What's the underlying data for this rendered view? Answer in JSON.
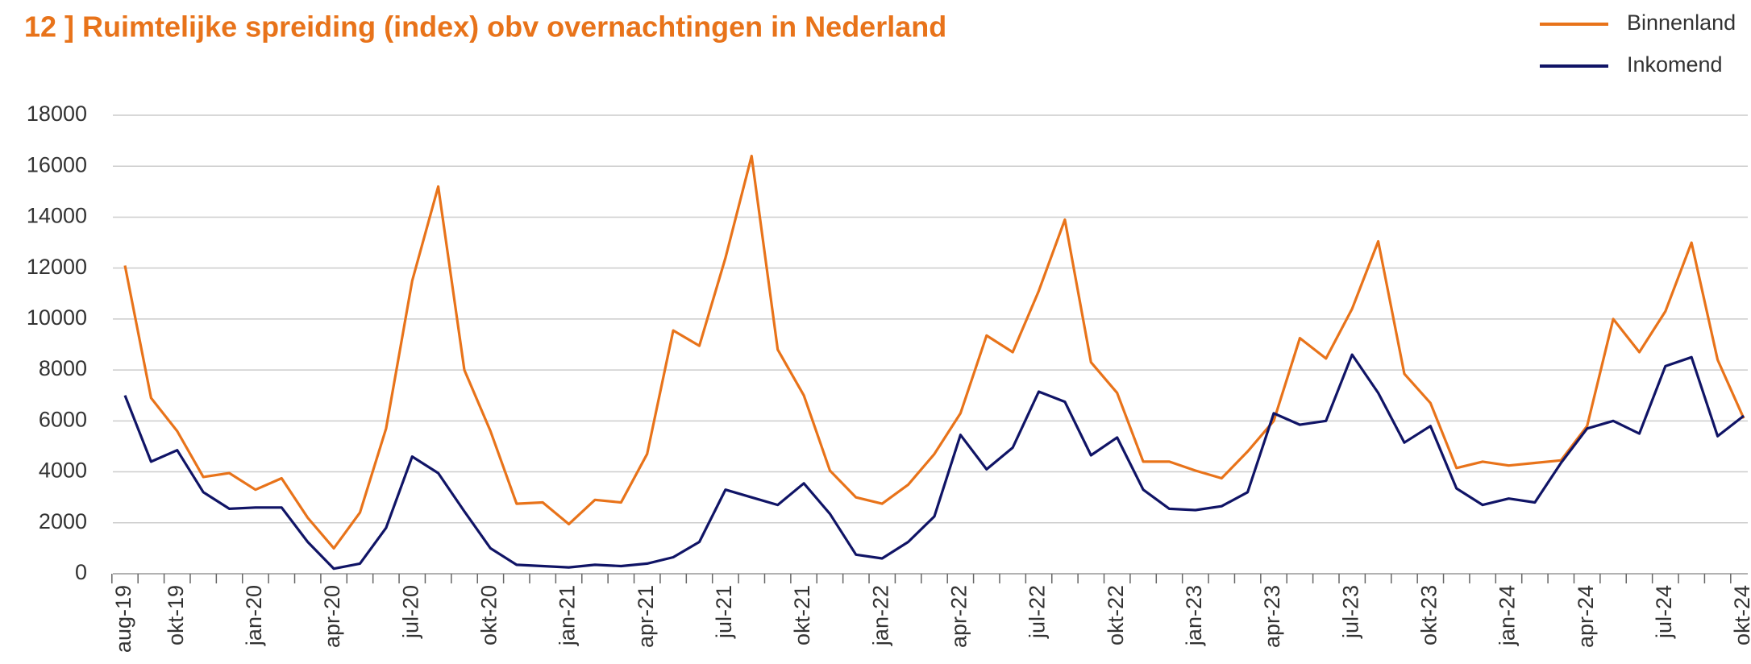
{
  "chart_data": {
    "type": "line",
    "title": "12 ] Ruimtelijke spreiding (index) obv overnachtingen in Nederland",
    "categories": [
      "aug-19",
      null,
      "okt-19",
      null,
      null,
      "jan-20",
      null,
      null,
      "apr-20",
      null,
      null,
      "jul-20",
      null,
      null,
      "okt-20",
      null,
      null,
      "jan-21",
      null,
      null,
      "apr-21",
      null,
      null,
      "jul-21",
      null,
      null,
      "okt-21",
      null,
      null,
      "jan-22",
      null,
      null,
      "apr-22",
      null,
      null,
      "jul-22",
      null,
      null,
      "okt-22",
      null,
      null,
      "jan-23",
      null,
      null,
      "apr-23",
      null,
      null,
      "jul-23",
      null,
      null,
      "okt-23",
      null,
      null,
      "jan-24",
      null,
      null,
      "apr-24",
      null,
      null,
      "jul-24",
      null,
      null,
      "okt-24"
    ],
    "series": [
      {
        "name": "Binnenland",
        "color": "#e8731a",
        "values": [
          12100,
          6900,
          5600,
          3800,
          3950,
          3300,
          3750,
          2200,
          1000,
          2400,
          5700,
          11500,
          15200,
          8000,
          5600,
          2750,
          2800,
          1950,
          2900,
          2800,
          4700,
          9550,
          8950,
          12400,
          16400,
          8800,
          7000,
          4050,
          3000,
          2750,
          3500,
          4700,
          6300,
          9350,
          8700,
          11100,
          13900,
          8300,
          7100,
          4400,
          4400,
          4050,
          3750,
          4800,
          6000,
          9250,
          8450,
          10400,
          13050,
          7850,
          6700,
          4150,
          4400,
          4250,
          4350,
          4450,
          5800,
          10000,
          8700,
          10300,
          13000,
          8400,
          6100
        ]
      },
      {
        "name": "Inkomend",
        "color": "#101466",
        "values": [
          7000,
          4400,
          4850,
          3200,
          2550,
          2600,
          2600,
          1250,
          200,
          400,
          1800,
          4600,
          3950,
          2450,
          1000,
          350,
          300,
          250,
          350,
          300,
          400,
          650,
          1250,
          3300,
          3000,
          2700,
          3550,
          2350,
          750,
          600,
          1250,
          2250,
          5450,
          4100,
          4950,
          7150,
          6750,
          4650,
          5350,
          3300,
          2550,
          2500,
          2650,
          3200,
          6300,
          5850,
          6000,
          8600,
          7100,
          5150,
          5800,
          3350,
          2700,
          2950,
          2800,
          4350,
          5700,
          6000,
          5500,
          8150,
          8500,
          5400,
          6200
        ]
      }
    ],
    "ylim": [
      0,
      18000
    ],
    "yticks": [
      0,
      2000,
      4000,
      6000,
      8000,
      10000,
      12000,
      14000,
      16000,
      18000
    ],
    "grid": true,
    "legend": "top-right"
  }
}
